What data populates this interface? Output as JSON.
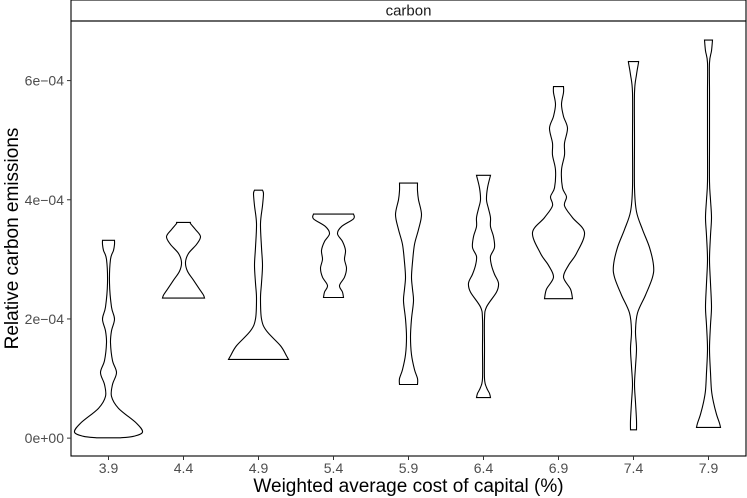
{
  "chart_data": {
    "type": "violin",
    "facet": "carbon",
    "xlabel": "Weighted average cost of capital (%)",
    "ylabel": "Relative carbon emissions",
    "ylim": [
      -3e-05,
      0.0007
    ],
    "yticks": [
      0,
      0.0002,
      0.0004,
      0.0006
    ],
    "yticklabels": [
      "0e+00",
      "2e−04",
      "4e−04",
      "6e−04"
    ],
    "categories": [
      "3.9",
      "4.4",
      "4.9",
      "5.4",
      "5.9",
      "6.4",
      "6.9",
      "7.4",
      "7.9"
    ],
    "grid": false,
    "violins": [
      {
        "category": "3.9",
        "min": 5e-07,
        "max": 0.000332,
        "profile": [
          [
            5e-07,
            12
          ],
          [
            3e-06,
            25
          ],
          [
            1e-05,
            34
          ],
          [
            2.5e-05,
            28
          ],
          [
            5e-05,
            10
          ],
          [
            7e-05,
            3
          ],
          [
            9e-05,
            4
          ],
          [
            0.00011,
            8
          ],
          [
            0.00013,
            4
          ],
          [
            0.00016,
            2
          ],
          [
            0.00018,
            3
          ],
          [
            0.0002,
            6
          ],
          [
            0.00022,
            3
          ],
          [
            0.00026,
            1
          ],
          [
            0.0003,
            2
          ],
          [
            0.000315,
            5
          ],
          [
            0.000325,
            6
          ],
          [
            0.000332,
            6
          ]
        ]
      },
      {
        "category": "4.4",
        "min": 0.000235,
        "max": 0.000362,
        "profile": [
          [
            0.000235,
            21
          ],
          [
            0.00024,
            20
          ],
          [
            0.00025,
            16
          ],
          [
            0.000265,
            10
          ],
          [
            0.00028,
            4
          ],
          [
            0.000295,
            2
          ],
          [
            0.00031,
            5
          ],
          [
            0.000325,
            13
          ],
          [
            0.000338,
            17
          ],
          [
            0.00035,
            12
          ],
          [
            0.00036,
            7
          ],
          [
            0.000362,
            7
          ]
        ]
      },
      {
        "category": "4.9",
        "min": 0.000132,
        "max": 0.000416,
        "profile": [
          [
            0.000132,
            30
          ],
          [
            0.000138,
            28
          ],
          [
            0.000155,
            22
          ],
          [
            0.00018,
            8
          ],
          [
            0.0002,
            3
          ],
          [
            0.000235,
            2
          ],
          [
            0.00026,
            3
          ],
          [
            0.00029,
            4
          ],
          [
            0.00032,
            3
          ],
          [
            0.00036,
            2
          ],
          [
            0.00039,
            4
          ],
          [
            0.00041,
            5
          ],
          [
            0.000416,
            4
          ]
        ]
      },
      {
        "category": "5.4",
        "min": 0.000236,
        "max": 0.000376,
        "profile": [
          [
            0.000236,
            10
          ],
          [
            0.000245,
            9
          ],
          [
            0.000256,
            6
          ],
          [
            0.00027,
            11
          ],
          [
            0.000285,
            13
          ],
          [
            0.0003,
            11
          ],
          [
            0.000315,
            12
          ],
          [
            0.00033,
            9
          ],
          [
            0.000343,
            4
          ],
          [
            0.000355,
            8
          ],
          [
            0.000368,
            20
          ],
          [
            0.000376,
            20
          ]
        ]
      },
      {
        "category": "5.9",
        "min": 9e-05,
        "max": 0.000428,
        "profile": [
          [
            9e-05,
            9
          ],
          [
            0.0001,
            9
          ],
          [
            0.000115,
            6
          ],
          [
            0.00014,
            3
          ],
          [
            0.00017,
            2
          ],
          [
            0.0002,
            3
          ],
          [
            0.00023,
            5
          ],
          [
            0.00025,
            4
          ],
          [
            0.00027,
            3
          ],
          [
            0.000295,
            4
          ],
          [
            0.000325,
            6
          ],
          [
            0.00035,
            10
          ],
          [
            0.000375,
            13
          ],
          [
            0.0004,
            10
          ],
          [
            0.000415,
            9
          ],
          [
            0.000428,
            9
          ]
        ]
      },
      {
        "category": "6.4",
        "min": 6.8e-05,
        "max": 0.000441,
        "profile": [
          [
            6.8e-05,
            7
          ],
          [
            7.5e-05,
            6
          ],
          [
            8.5e-05,
            3
          ],
          [
            0.0001,
            1
          ],
          [
            0.00015,
            1
          ],
          [
            0.0002,
            1
          ],
          [
            0.00022,
            3
          ],
          [
            0.000245,
            13
          ],
          [
            0.00026,
            15
          ],
          [
            0.000275,
            11
          ],
          [
            0.00029,
            8
          ],
          [
            0.000305,
            7
          ],
          [
            0.00032,
            11
          ],
          [
            0.000338,
            10
          ],
          [
            0.000355,
            7
          ],
          [
            0.00037,
            7
          ],
          [
            0.000385,
            5
          ],
          [
            0.0004,
            3
          ],
          [
            0.00042,
            4
          ],
          [
            0.000441,
            7
          ]
        ]
      },
      {
        "category": "6.9",
        "min": 0.000234,
        "max": 0.00059,
        "profile": [
          [
            0.000234,
            14
          ],
          [
            0.00025,
            12
          ],
          [
            0.00027,
            5
          ],
          [
            0.00029,
            10
          ],
          [
            0.00031,
            18
          ],
          [
            0.000345,
            26
          ],
          [
            0.00037,
            14
          ],
          [
            0.00039,
            6
          ],
          [
            0.000405,
            8
          ],
          [
            0.00042,
            4
          ],
          [
            0.00045,
            3
          ],
          [
            0.000475,
            6
          ],
          [
            0.000495,
            6
          ],
          [
            0.00052,
            9
          ],
          [
            0.00054,
            5
          ],
          [
            0.00056,
            3
          ],
          [
            0.00058,
            5
          ],
          [
            0.00059,
            5
          ]
        ]
      },
      {
        "category": "7.4",
        "min": 1.4e-05,
        "max": 0.000632,
        "profile": [
          [
            1.4e-05,
            3
          ],
          [
            3e-05,
            3
          ],
          [
            6e-05,
            2
          ],
          [
            9e-05,
            1
          ],
          [
            0.00012,
            2
          ],
          [
            0.00015,
            3
          ],
          [
            0.00018,
            2
          ],
          [
            0.00021,
            4
          ],
          [
            0.00024,
            12
          ],
          [
            0.00027,
            19
          ],
          [
            0.00029,
            20
          ],
          [
            0.00032,
            16
          ],
          [
            0.00035,
            9
          ],
          [
            0.00038,
            3
          ],
          [
            0.00042,
            1
          ],
          [
            0.0005,
            1
          ],
          [
            0.00058,
            1
          ],
          [
            0.00061,
            3
          ],
          [
            0.00063,
            5
          ],
          [
            0.000632,
            5
          ]
        ]
      },
      {
        "category": "7.9",
        "min": 1.8e-05,
        "max": 0.000668,
        "profile": [
          [
            1.8e-05,
            12
          ],
          [
            2.5e-05,
            11
          ],
          [
            4e-05,
            8
          ],
          [
            6e-05,
            5
          ],
          [
            8e-05,
            3
          ],
          [
            0.00011,
            2
          ],
          [
            0.00015,
            1
          ],
          [
            0.00019,
            2
          ],
          [
            0.00022,
            3
          ],
          [
            0.00026,
            2
          ],
          [
            0.0003,
            1
          ],
          [
            0.00034,
            2
          ],
          [
            0.00037,
            3
          ],
          [
            0.0004,
            2
          ],
          [
            0.00043,
            1
          ],
          [
            0.0005,
            1
          ],
          [
            0.00058,
            1
          ],
          [
            0.00063,
            1
          ],
          [
            0.00065,
            3
          ],
          [
            0.000668,
            4
          ]
        ]
      }
    ]
  }
}
